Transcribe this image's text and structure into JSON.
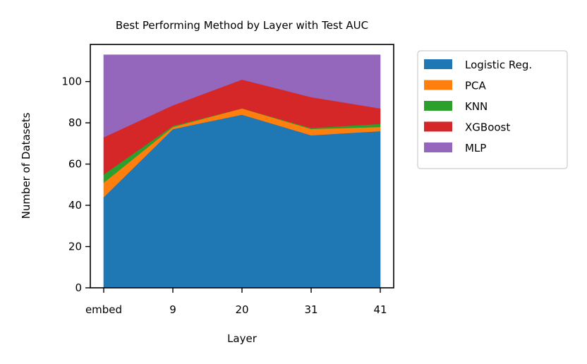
{
  "chart_data": {
    "type": "area",
    "stacked": true,
    "title": "Best Performing Method by Layer with Test AUC",
    "xlabel": "Layer",
    "ylabel": "Number of Datasets",
    "categories": [
      "embed",
      "9",
      "20",
      "31",
      "41"
    ],
    "ylim": [
      0,
      118
    ],
    "yticks": [
      0,
      20,
      40,
      60,
      80,
      100
    ],
    "grid": false,
    "legend_position": "right-outside-top",
    "series": [
      {
        "name": "Logistic Reg.",
        "color": "#1f77b4",
        "values": [
          44,
          77,
          84,
          74,
          76
        ]
      },
      {
        "name": "PCA",
        "color": "#ff7f0e",
        "values": [
          7,
          1,
          3,
          3,
          2
        ]
      },
      {
        "name": "KNN",
        "color": "#2ca02c",
        "values": [
          4,
          0.5,
          0,
          0.5,
          1.5
        ]
      },
      {
        "name": "XGBoost",
        "color": "#d62728",
        "values": [
          18,
          10,
          14,
          15,
          7.5
        ]
      },
      {
        "name": "MLP",
        "color": "#9467bd",
        "values": [
          40,
          24.5,
          12,
          20.5,
          26
        ]
      }
    ]
  }
}
